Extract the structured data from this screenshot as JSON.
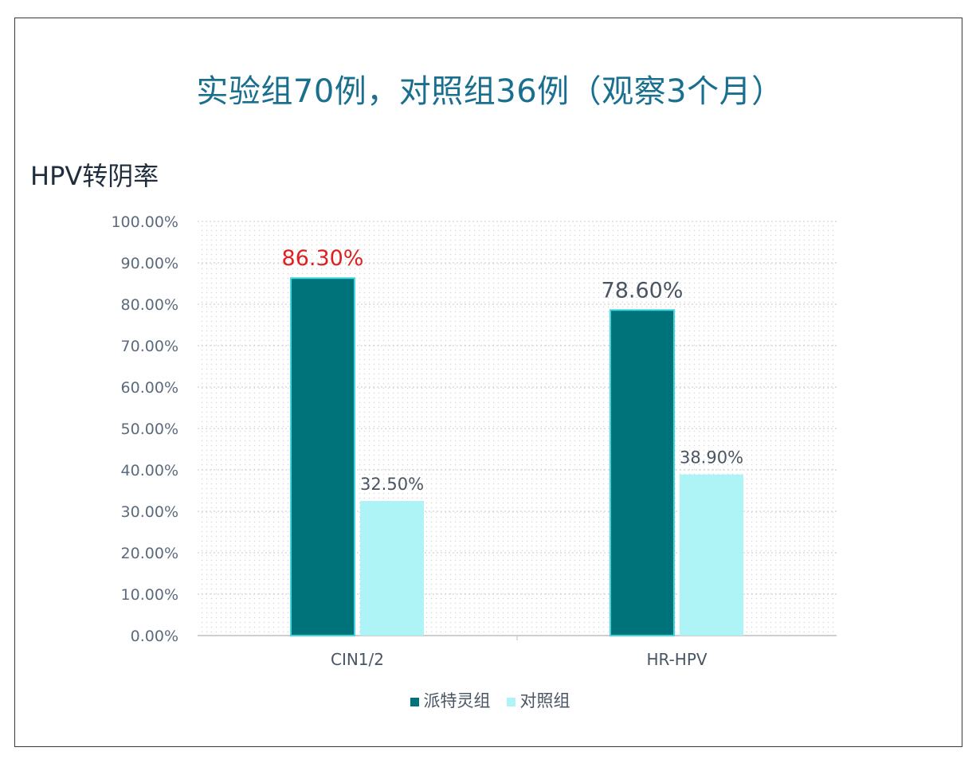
{
  "chart_data": {
    "type": "bar",
    "title": "实验组70例，对照组36例（观察3个月）",
    "ylabel": "HPV转阴率",
    "xlabel": "",
    "categories": [
      "CIN1/2",
      "HR-HPV"
    ],
    "series": [
      {
        "name": "派特灵组",
        "values": [
          86.3,
          78.6
        ],
        "labels": [
          "86.30%",
          "78.60%"
        ],
        "color": "#00737a",
        "label_colors": [
          "#e02020",
          "#4a5563"
        ]
      },
      {
        "name": "对照组",
        "values": [
          32.5,
          38.9
        ],
        "labels": [
          "32.50%",
          "38.90%"
        ],
        "color": "#aef4f7",
        "label_colors": [
          "#4a5563",
          "#4a5563"
        ]
      }
    ],
    "ylim": [
      0,
      100
    ],
    "yticks": [
      "0.00%",
      "10.00%",
      "20.00%",
      "30.00%",
      "40.00%",
      "50.00%",
      "60.00%",
      "70.00%",
      "80.00%",
      "90.00%",
      "100.00%"
    ],
    "grid": true,
    "legend_position": "bottom"
  }
}
